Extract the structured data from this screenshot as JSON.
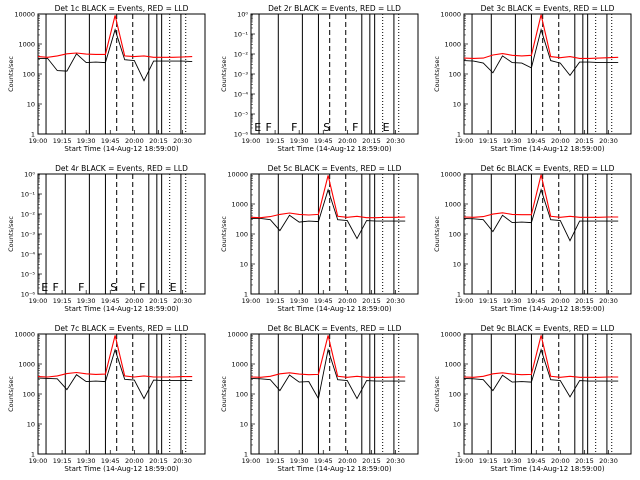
{
  "page": {
    "background": "#ffffff"
  },
  "colors": {
    "events": "#000000",
    "lld": "#ff0000",
    "axis": "#000000"
  },
  "chart_data": [
    {
      "type": "line",
      "title": "Det 1c BLACK = Events, RED = LLD",
      "xlabel": "Start Time (14-Aug-12 18:59:00)",
      "ylabel": "Counts/sec",
      "yscale": "log",
      "ylim": [
        1,
        10000
      ],
      "ytick_labels": [
        "1",
        "10",
        "100",
        "1000",
        "10000"
      ],
      "x_ticks": [
        "19:00",
        "19:15",
        "19:30",
        "19:45",
        "20:00",
        "20:15",
        "20:30"
      ],
      "attenuator_labels": [],
      "x": [
        "19:00",
        "19:06",
        "19:12",
        "19:18",
        "19:24",
        "19:30",
        "19:36",
        "19:42",
        "19:48",
        "19:54",
        "20:00",
        "20:06",
        "20:12",
        "20:18",
        "20:24",
        "20:30",
        "20:36"
      ],
      "series": [
        {
          "name": "Events",
          "values": [
            330,
            330,
            130,
            125,
            470,
            240,
            250,
            240,
            3000,
            300,
            280,
            60,
            270,
            270,
            270,
            270,
            260
          ]
        },
        {
          "name": "LLD",
          "values": [
            380,
            360,
            400,
            470,
            500,
            460,
            450,
            450,
            9000,
            400,
            380,
            400,
            360,
            360,
            360,
            370,
            380
          ]
        }
      ]
    },
    {
      "type": "line",
      "title": "Det 2r BLACK = Events, RED = LLD",
      "xlabel": "Start Time (14-Aug-12 18:59:00)",
      "ylabel": "Counts/sec",
      "yscale": "log",
      "ylim": [
        1,
        1e-06
      ],
      "ytick_labels": [
        "10⁻⁶",
        "10⁻⁵",
        "10⁻⁴",
        "10⁻³",
        "10⁻²",
        "10⁻¹",
        "10⁰"
      ],
      "x_ticks": [
        "19:00",
        "19:15",
        "19:30",
        "19:45",
        "20:00",
        "20:15",
        "20:30"
      ],
      "attenuator_labels": [
        "E",
        "F",
        "F",
        "S",
        "F",
        "E"
      ],
      "x": [],
      "series": []
    },
    {
      "type": "line",
      "title": "Det 3c BLACK = Events, RED = LLD",
      "xlabel": "Start Time (14-Aug-12 18:59:00)",
      "ylabel": "Counts/sec",
      "yscale": "log",
      "ylim": [
        1,
        10000
      ],
      "ytick_labels": [
        "1",
        "10",
        "100",
        "1000",
        "10000"
      ],
      "x_ticks": [
        "19:00",
        "19:15",
        "19:30",
        "19:45",
        "20:00",
        "20:15",
        "20:30"
      ],
      "attenuator_labels": [],
      "x": [
        "19:00",
        "19:06",
        "19:12",
        "19:18",
        "19:24",
        "19:30",
        "19:36",
        "19:42",
        "19:48",
        "19:54",
        "20:00",
        "20:06",
        "20:12",
        "20:18",
        "20:24",
        "20:30",
        "20:36"
      ],
      "series": [
        {
          "name": "Events",
          "values": [
            280,
            270,
            230,
            110,
            400,
            240,
            230,
            160,
            3000,
            280,
            230,
            90,
            250,
            250,
            240,
            240,
            240
          ]
        },
        {
          "name": "LLD",
          "values": [
            340,
            330,
            340,
            430,
            480,
            420,
            400,
            420,
            9500,
            380,
            350,
            380,
            330,
            330,
            340,
            350,
            360
          ]
        }
      ]
    },
    {
      "type": "line",
      "title": "Det 4r BLACK = Events, RED = LLD",
      "xlabel": "Start Time (14-Aug-12 18:59:00)",
      "ylabel": "Counts/sec",
      "yscale": "log",
      "ylim": [
        1,
        1e-06
      ],
      "ytick_labels": [
        "10⁻⁶",
        "10⁻⁵",
        "10⁻⁴",
        "10⁻³",
        "10⁻²",
        "10⁻¹",
        "10⁰"
      ],
      "x_ticks": [
        "19:00",
        "19:15",
        "19:30",
        "19:45",
        "20:00",
        "20:15",
        "20:30"
      ],
      "attenuator_labels": [
        "E",
        "F",
        "F",
        "S",
        "F",
        "E"
      ],
      "x": [],
      "series": []
    },
    {
      "type": "line",
      "title": "Det 5c BLACK = Events, RED = LLD",
      "xlabel": "Start Time (14-Aug-12 18:59:00)",
      "ylabel": "Counts/sec",
      "yscale": "log",
      "ylim": [
        1,
        10000
      ],
      "ytick_labels": [
        "1",
        "10",
        "100",
        "1000",
        "10000"
      ],
      "x_ticks": [
        "19:00",
        "19:15",
        "19:30",
        "19:45",
        "20:00",
        "20:15",
        "20:30"
      ],
      "attenuator_labels": [],
      "x": [
        "19:00",
        "19:06",
        "19:12",
        "19:18",
        "19:24",
        "19:30",
        "19:36",
        "19:42",
        "19:48",
        "19:54",
        "20:00",
        "20:06",
        "20:12",
        "20:18",
        "20:24",
        "20:30",
        "20:36"
      ],
      "series": [
        {
          "name": "Events",
          "values": [
            330,
            330,
            300,
            130,
            420,
            250,
            270,
            260,
            3000,
            300,
            280,
            70,
            280,
            270,
            270,
            270,
            270
          ]
        },
        {
          "name": "LLD",
          "values": [
            360,
            350,
            380,
            450,
            500,
            450,
            430,
            450,
            9000,
            390,
            360,
            390,
            350,
            350,
            360,
            360,
            370
          ]
        }
      ]
    },
    {
      "type": "line",
      "title": "Det 6c BLACK = Events, RED = LLD",
      "xlabel": "Start Time (14-Aug-12 18:59:00)",
      "ylabel": "Counts/sec",
      "yscale": "log",
      "ylim": [
        1,
        10000
      ],
      "ytick_labels": [
        "1",
        "10",
        "100",
        "1000",
        "10000"
      ],
      "x_ticks": [
        "19:00",
        "19:15",
        "19:30",
        "19:45",
        "20:00",
        "20:15",
        "20:30"
      ],
      "attenuator_labels": [],
      "x": [
        "19:00",
        "19:06",
        "19:12",
        "19:18",
        "19:24",
        "19:30",
        "19:36",
        "19:42",
        "19:48",
        "19:54",
        "20:00",
        "20:06",
        "20:12",
        "20:18",
        "20:24",
        "20:30",
        "20:36"
      ],
      "series": [
        {
          "name": "Events",
          "values": [
            330,
            320,
            300,
            120,
            420,
            240,
            250,
            240,
            3000,
            300,
            280,
            60,
            270,
            270,
            270,
            270,
            270
          ]
        },
        {
          "name": "LLD",
          "values": [
            370,
            360,
            380,
            460,
            510,
            450,
            440,
            440,
            9500,
            390,
            360,
            390,
            360,
            360,
            360,
            370,
            370
          ]
        }
      ]
    },
    {
      "type": "line",
      "title": "Det 7c BLACK = Events, RED = LLD",
      "xlabel": "Start Time (14-Aug-12 18:59:00)",
      "ylabel": "Counts/sec",
      "yscale": "log",
      "ylim": [
        1,
        10000
      ],
      "ytick_labels": [
        "1",
        "10",
        "100",
        "1000",
        "10000"
      ],
      "x_ticks": [
        "19:00",
        "19:15",
        "19:30",
        "19:45",
        "20:00",
        "20:15",
        "20:30"
      ],
      "attenuator_labels": [],
      "x": [
        "19:00",
        "19:06",
        "19:12",
        "19:18",
        "19:24",
        "19:30",
        "19:36",
        "19:42",
        "19:48",
        "19:54",
        "20:00",
        "20:06",
        "20:12",
        "20:18",
        "20:24",
        "20:30",
        "20:36"
      ],
      "series": [
        {
          "name": "Events",
          "values": [
            340,
            330,
            320,
            140,
            440,
            260,
            270,
            260,
            3000,
            310,
            290,
            70,
            290,
            280,
            280,
            280,
            280
          ]
        },
        {
          "name": "LLD",
          "values": [
            380,
            370,
            400,
            480,
            520,
            470,
            450,
            460,
            9000,
            400,
            370,
            400,
            370,
            370,
            370,
            380,
            380
          ]
        }
      ]
    },
    {
      "type": "line",
      "title": "Det 8c BLACK = Events, RED = LLD",
      "xlabel": "Start Time (14-Aug-12 18:59:00)",
      "ylabel": "Counts/sec",
      "yscale": "log",
      "ylim": [
        1,
        10000
      ],
      "ytick_labels": [
        "1",
        "10",
        "100",
        "1000",
        "10000"
      ],
      "x_ticks": [
        "19:00",
        "19:15",
        "19:30",
        "19:45",
        "20:00",
        "20:15",
        "20:30"
      ],
      "attenuator_labels": [],
      "x": [
        "19:00",
        "19:06",
        "19:12",
        "19:18",
        "19:24",
        "19:30",
        "19:36",
        "19:42",
        "19:48",
        "19:54",
        "20:00",
        "20:06",
        "20:12",
        "20:18",
        "20:24",
        "20:30",
        "20:36"
      ],
      "series": [
        {
          "name": "Events",
          "values": [
            330,
            320,
            300,
            130,
            430,
            250,
            260,
            70,
            3000,
            300,
            280,
            70,
            280,
            270,
            270,
            270,
            270
          ]
        },
        {
          "name": "LLD",
          "values": [
            370,
            360,
            390,
            470,
            510,
            460,
            440,
            450,
            9000,
            390,
            360,
            390,
            360,
            360,
            360,
            370,
            370
          ]
        }
      ]
    },
    {
      "type": "line",
      "title": "Det 9c BLACK = Events, RED = LLD",
      "xlabel": "Start Time (14-Aug-12 18:59:00)",
      "ylabel": "Counts/sec",
      "yscale": "log",
      "ylim": [
        1,
        10000
      ],
      "ytick_labels": [
        "1",
        "10",
        "100",
        "1000",
        "10000"
      ],
      "x_ticks": [
        "19:00",
        "19:15",
        "19:30",
        "19:45",
        "20:00",
        "20:15",
        "20:30"
      ],
      "attenuator_labels": [],
      "x": [
        "19:00",
        "19:06",
        "19:12",
        "19:18",
        "19:24",
        "19:30",
        "19:36",
        "19:42",
        "19:48",
        "19:54",
        "20:00",
        "20:06",
        "20:12",
        "20:18",
        "20:24",
        "20:30",
        "20:36"
      ],
      "series": [
        {
          "name": "Events",
          "values": [
            330,
            320,
            300,
            130,
            420,
            250,
            260,
            250,
            3000,
            300,
            280,
            80,
            280,
            270,
            270,
            270,
            270
          ]
        },
        {
          "name": "LLD",
          "values": [
            370,
            360,
            390,
            470,
            510,
            460,
            440,
            450,
            9000,
            390,
            360,
            390,
            360,
            360,
            360,
            370,
            370
          ]
        }
      ]
    }
  ]
}
